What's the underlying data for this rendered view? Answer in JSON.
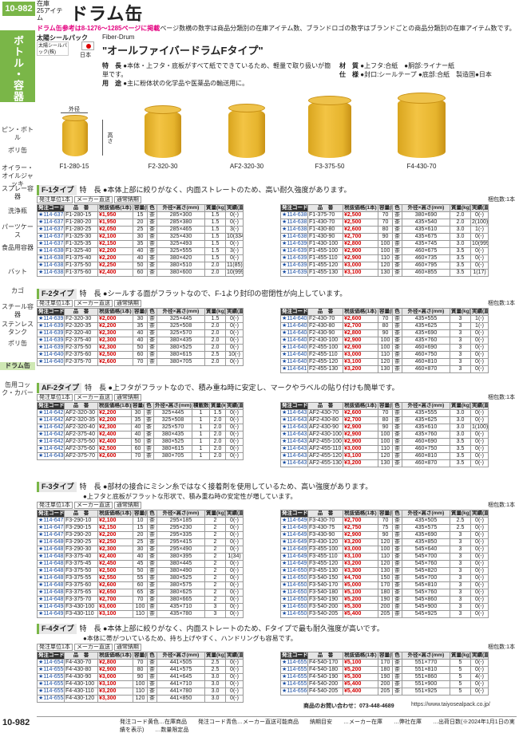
{
  "page": {
    "number": "10-982",
    "number_bottom": "10-982",
    "category_line1": "在庫",
    "category_line2": "25アイテム",
    "title": "ドラム缶"
  },
  "ref_text_pre": "ドラム缶参考は8-1276〜1285ページに掲載",
  "ref_text_post": "ページ数横の数字は商品分類別の在庫アイテム数、ブランドロゴの数字はブランドごとの商品分類別の在庫アイテム数です。",
  "sidebar": {
    "main": "ボトル・容器",
    "items": [
      "ピン・ボトル",
      "ポリ缶",
      "オイラー・オイルジャッキ",
      "スプレー容器",
      "洗浄瓶",
      "パーツケース",
      "食品用容器",
      "バット",
      "カゴ",
      "スチール容器",
      "ステンレスタンク",
      "ポリ缶",
      "ドラム缶",
      "缶用コック・カバー"
    ]
  },
  "brand": {
    "name": "太陽シールパック",
    "logo_text": "太陽シールパック(株)",
    "country": "日本",
    "sub_en": "Fiber-Drum",
    "sub_jp": "\"オールファイバードラムFタイプ\""
  },
  "specs": {
    "l1_label": "特　長",
    "l1": "●本体・上フタ・底板がすべて紙でできているため、軽量で取り扱いが簡単です。",
    "l2_label": "用　途",
    "l2": "●主に粉体状の化学品や医薬品の輸送用に。",
    "m_label": "材　質",
    "m1": "●上フタ:合紙　●胴部:ライナー紙",
    "m2": "●底部:合紙　製造国●日本",
    "s_label": "仕　様",
    "s1": "●封口:シールテープ"
  },
  "products": [
    {
      "code": "F1-280-15"
    },
    {
      "code": "F2-320-30"
    },
    {
      "code": "AF2-320-30"
    },
    {
      "code": "F3-375-50"
    },
    {
      "code": "F4-430-70"
    }
  ],
  "dim_labels": {
    "outer": "外径",
    "height": "高さ"
  },
  "headers": {
    "code": "発注コード",
    "name": "品　番",
    "price": "税抜価格(1本)",
    "kind": "メーカー直送",
    "cap": "容量(L)",
    "color": "色",
    "dims": "外径×高さ(mm)",
    "weight": "質量(kg)",
    "stock": "実績(直送注文)",
    "layers": "積載数(本)",
    "unit_label": "発注単位1本",
    "maker": "メーカー直送",
    "stock_hdr": "通常納期",
    "pack": "梱包数:1本",
    "seller": "太陽シールパック(株)"
  },
  "sections": [
    {
      "id": "F-1",
      "name": "F-1タイプ",
      "note": "特　長 ●本体上部に絞りがなく、内面ストレートのため、高い耐久強度があります。",
      "left": [
        [
          "114-6374",
          "F1-280-15",
          "¥1,950",
          "15",
          "茶",
          "285×300",
          "1.5",
          "0(-)"
        ],
        [
          "114-6375",
          "F1-280-20",
          "¥1,950",
          "20",
          "茶",
          "285×380",
          "1.5",
          "0(-)"
        ],
        [
          "114-6376",
          "F1-280-25",
          "¥2,050",
          "25",
          "茶",
          "285×465",
          "1.5",
          "3(-)"
        ],
        [
          "114-6377",
          "F1-325-30",
          "¥2,100",
          "30",
          "茶",
          "325×430",
          "1.5",
          "10(334)"
        ],
        [
          "114-6378",
          "F1-325-35",
          "¥2,150",
          "35",
          "茶",
          "325×493",
          "1.5",
          "0(-)"
        ],
        [
          "114-6380",
          "F1-325-40",
          "¥2,200",
          "40",
          "茶",
          "325×555",
          "1.5",
          "3(-)"
        ],
        [
          "114-6381",
          "F1-375-40",
          "¥2,200",
          "40",
          "茶",
          "380×420",
          "1.5",
          "0(-)"
        ],
        [
          "114-6382",
          "F1-375-50",
          "¥2,250",
          "50",
          "茶",
          "380×510",
          "2.0",
          "11(85)"
        ],
        [
          "114-6383",
          "F1-375-60",
          "¥2,400",
          "60",
          "茶",
          "380×600",
          "2.0",
          "10(999)"
        ]
      ],
      "right": [
        [
          "114-6386",
          "F1-375-70",
          "¥2,500",
          "70",
          "茶",
          "380×690",
          "2.0",
          "0(-)"
        ],
        [
          "114-6387",
          "F1-430-70",
          "¥2,500",
          "70",
          "茶",
          "435×540",
          "2.0",
          "2(100)"
        ],
        [
          "114-6388",
          "F1-430-80",
          "¥2,600",
          "80",
          "茶",
          "435×610",
          "3.0",
          "1(-)"
        ],
        [
          "114-6389",
          "F1-430-90",
          "¥2,700",
          "90",
          "茶",
          "435×675",
          "3.0",
          "0(-)"
        ],
        [
          "114-6390",
          "F1-430-100",
          "¥2,800",
          "100",
          "茶",
          "435×745",
          "3.0",
          "10(999)"
        ],
        [
          "114-6391",
          "F1-455-100",
          "¥2,900",
          "100",
          "茶",
          "460×675",
          "3.5",
          "0(-)"
        ],
        [
          "114-6392",
          "F1-455-110",
          "¥2,900",
          "110",
          "茶",
          "460×735",
          "3.5",
          "0(-)"
        ],
        [
          "114-6393",
          "F1-455-120",
          "¥3,000",
          "120",
          "茶",
          "460×795",
          "3.5",
          "0(-)"
        ],
        [
          "114-6394",
          "F1-455-130",
          "¥3,100",
          "130",
          "茶",
          "460×855",
          "3.5",
          "1(17)"
        ]
      ]
    },
    {
      "id": "F-2",
      "name": "F-2タイプ",
      "note": "特　長 ●シールする面がフラットなので、F-1より封印の密閉性が向上しています。",
      "left": [
        [
          "114-6395",
          "F2-320-30",
          "¥2,000",
          "30",
          "茶",
          "325×445",
          "1.5",
          "0(-)"
        ],
        [
          "114-6396",
          "F2-320-35",
          "¥2,200",
          "35",
          "茶",
          "325×508",
          "2.0",
          "0(-)"
        ],
        [
          "114-6397",
          "F2-320-40",
          "¥2,300",
          "40",
          "茶",
          "325×570",
          "2.0",
          "0(-)"
        ],
        [
          "114-6398",
          "F2-375-40",
          "¥2,300",
          "40",
          "茶",
          "380×435",
          "2.0",
          "0(-)"
        ],
        [
          "114-6399",
          "F2-375-50",
          "¥2,300",
          "50",
          "茶",
          "380×525",
          "2.0",
          "0(-)"
        ],
        [
          "114-6400",
          "F2-375-60",
          "¥2,500",
          "60",
          "茶",
          "380×615",
          "2.5",
          "10(-)"
        ],
        [
          "114-6401",
          "F2-375-70",
          "¥2,600",
          "70",
          "茶",
          "380×705",
          "2.0",
          "0(-)"
        ]
      ],
      "right": [
        [
          "114-6402",
          "F2-430-70",
          "¥2,600",
          "70",
          "茶",
          "435×555",
          "3",
          "1(-)"
        ],
        [
          "114-6403",
          "F2-430-80",
          "¥2,700",
          "80",
          "茶",
          "435×625",
          "3",
          "1(-)"
        ],
        [
          "114-6404",
          "F2-430-90",
          "¥2,800",
          "90",
          "茶",
          "435×690",
          "3",
          "0(-)"
        ],
        [
          "114-6405",
          "F2-430-100",
          "¥2,900",
          "100",
          "茶",
          "435×760",
          "3",
          "0(-)"
        ],
        [
          "114-6406",
          "F2-455-100",
          "¥2,900",
          "100",
          "茶",
          "460×690",
          "3",
          "0(-)"
        ],
        [
          "114-6407",
          "F2-455-110",
          "¥3,000",
          "110",
          "茶",
          "460×750",
          "3",
          "0(-)"
        ],
        [
          "114-6409",
          "F2-455-120",
          "¥3,100",
          "120",
          "茶",
          "460×810",
          "3",
          "0(-)"
        ],
        [
          "114-6410",
          "F2-455-130",
          "¥3,200",
          "130",
          "茶",
          "460×870",
          "3",
          "0(-)"
        ]
      ]
    },
    {
      "id": "AF-2",
      "name": "AF-2タイプ",
      "note": "特　長 ●上フタがフラットなので、積み重ね時に安定し、マークやラベルの貼り付けも簡単です。",
      "left": [
        [
          "114-6423",
          "AF2-320-30",
          "¥2,200",
          "30",
          "茶",
          "325×445",
          "1",
          "1.5"
        ],
        [
          "114-6425",
          "AF2-320-35",
          "¥2,200",
          "35",
          "茶",
          "325×508",
          "1",
          "2.0"
        ],
        [
          "114-6426",
          "AF2-320-40",
          "¥2,300",
          "40",
          "茶",
          "325×570",
          "1",
          "2.0"
        ],
        [
          "114-6427",
          "AF2-375-40",
          "¥2,400",
          "40",
          "茶",
          "380×435",
          "1",
          "2.0"
        ],
        [
          "114-6428",
          "AF2-375-50",
          "¥2,400",
          "50",
          "茶",
          "380×525",
          "1",
          "2.0"
        ],
        [
          "114-6429",
          "AF2-375-60",
          "¥2,500",
          "60",
          "茶",
          "380×615",
          "1",
          "2.0"
        ],
        [
          "114-6430",
          "AF2-375-70",
          "¥2,600",
          "70",
          "茶",
          "380×705",
          "1",
          "2.0"
        ]
      ],
      "right": [
        [
          "114-6431",
          "AF2-430-70",
          "¥2,600",
          "70",
          "茶",
          "435×555",
          "3.0",
          "0(-)"
        ],
        [
          "114-6433",
          "AF2-430-80",
          "¥2,700",
          "80",
          "茶",
          "435×625",
          "3.0",
          "0(-)"
        ],
        [
          "114-6434",
          "AF2-430-90",
          "¥2,900",
          "90",
          "茶",
          "435×610",
          "3.0",
          "1(100)"
        ],
        [
          "114-6435",
          "AF2-430-100",
          "¥2,900",
          "100",
          "茶",
          "435×760",
          "3.0",
          "0(-)"
        ],
        [
          "114-6436",
          "AF2-455-100",
          "¥2,900",
          "100",
          "茶",
          "460×690",
          "3.5",
          "0(-)"
        ],
        [
          "114-6437",
          "AF2-455-110",
          "¥3,000",
          "110",
          "茶",
          "460×750",
          "3.5",
          "0(-)"
        ],
        [
          "114-6438",
          "AF2-455-120",
          "¥3,100",
          "120",
          "茶",
          "460×810",
          "3.5",
          "0(-)"
        ],
        [
          "114-6439",
          "AF2-455-130",
          "¥3,200",
          "130",
          "茶",
          "460×870",
          "3.5",
          "0(-)"
        ]
      ]
    },
    {
      "id": "F-3",
      "name": "F-3タイプ",
      "note": "特　長 ●部材の接合にミシン糸ではなく接着剤を使用しているため、高い強度があります。",
      "note2": "●上フタと底板がフラットな形状で、積み重ね時の安定性が増しています。",
      "left": [
        [
          "114-6477",
          "F3-290-10",
          "¥2,100",
          "10",
          "茶",
          "295×185",
          "2",
          "0(-)"
        ],
        [
          "114-6478",
          "F3-290-15",
          "¥2,150",
          "15",
          "茶",
          "295×230",
          "2",
          "0(-)"
        ],
        [
          "114-6479",
          "F3-290-20",
          "¥2,200",
          "20",
          "茶",
          "295×335",
          "2",
          "0(-)"
        ],
        [
          "114-6480",
          "F3-290-25",
          "¥2,250",
          "25",
          "茶",
          "295×415",
          "2",
          "0(-)"
        ],
        [
          "114-6481",
          "F3-290-30",
          "¥2,300",
          "30",
          "茶",
          "295×490",
          "2",
          "0(-)"
        ],
        [
          "114-6482",
          "F3-375-40",
          "¥2,400",
          "40",
          "茶",
          "380×395",
          "2",
          "1(34)"
        ],
        [
          "114-6483",
          "F3-375-45",
          "¥2,450",
          "45",
          "茶",
          "380×445",
          "2",
          "0(-)"
        ],
        [
          "114-6485",
          "F3-375-50",
          "¥2,500",
          "50",
          "茶",
          "380×490",
          "2",
          "0(-)"
        ],
        [
          "114-6486",
          "F3-375-55",
          "¥2,550",
          "55",
          "茶",
          "380×525",
          "2",
          "0(-)"
        ],
        [
          "114-6487",
          "F3-375-60",
          "¥2,600",
          "60",
          "茶",
          "380×575",
          "2",
          "0(-)"
        ],
        [
          "114-6488",
          "F3-375-65",
          "¥2,650",
          "65",
          "茶",
          "380×625",
          "2",
          "0(-)"
        ],
        [
          "114-6489",
          "F3-375-70",
          "¥2,700",
          "70",
          "茶",
          "380×665",
          "2",
          "0(-)"
        ],
        [
          "114-6494",
          "F3-430-100",
          "¥3,000",
          "100",
          "茶",
          "435×710",
          "3",
          "0(-)"
        ],
        [
          "114-6495",
          "F3-430-110",
          "¥3,100",
          "110",
          "茶",
          "435×780",
          "3",
          "0(-)"
        ]
      ],
      "right": [
        [
          "114-6490",
          "F3-430-70",
          "¥2,700",
          "70",
          "茶",
          "435×505",
          "2.5",
          "0(-)"
        ],
        [
          "114-6492",
          "F3-430-75",
          "¥2,750",
          "75",
          "茶",
          "435×575",
          "2.5",
          "0(-)"
        ],
        [
          "114-6493",
          "F3-430-90",
          "¥2,900",
          "90",
          "茶",
          "435×690",
          "3",
          "0(-)"
        ],
        [
          "114-6496",
          "F3-430-120",
          "¥3,200",
          "120",
          "茶",
          "435×850",
          "3",
          "0(-)"
        ],
        [
          "114-6497",
          "F3-455-100",
          "¥3,000",
          "100",
          "茶",
          "545×640",
          "3",
          "0(-)"
        ],
        [
          "114-6498",
          "F3-455-110",
          "¥3,100",
          "110",
          "茶",
          "545×700",
          "3",
          "0(-)"
        ],
        [
          "114-6499",
          "F3-455-120",
          "¥3,200",
          "120",
          "茶",
          "545×760",
          "3",
          "0(-)"
        ],
        [
          "114-6500",
          "F3-455-130",
          "¥3,300",
          "130",
          "茶",
          "545×820",
          "3",
          "0(-)"
        ],
        [
          "114-6501",
          "F3-540-150",
          "¥4,700",
          "150",
          "茶",
          "545×700",
          "3",
          "0(-)"
        ],
        [
          "114-6502",
          "F3-540-170",
          "¥5,000",
          "170",
          "茶",
          "545×810",
          "3",
          "0(-)"
        ],
        [
          "114-6503",
          "F3-540-180",
          "¥5,100",
          "180",
          "茶",
          "545×760",
          "3",
          "0(-)"
        ],
        [
          "114-6504",
          "F3-540-190",
          "¥5,200",
          "190",
          "茶",
          "545×860",
          "3",
          "0(-)"
        ],
        [
          "114-6505",
          "F3-540-200",
          "¥5,300",
          "200",
          "茶",
          "545×900",
          "3",
          "0(-)"
        ],
        [
          "114-6506",
          "F3-540-205",
          "¥5,400",
          "205",
          "茶",
          "545×925",
          "3",
          "0(-)"
        ]
      ]
    },
    {
      "id": "F-4",
      "name": "F-4タイプ",
      "note": "特　長 ●本体上部に絞りがなく、内面ストレートのため、Fタイプで最も耐久強度が高いです。",
      "note2": "●本体に帯がついているため、持ち上げやすく、ハンドリングも容易です。",
      "left": [
        [
          "114-6549",
          "F4-430-70",
          "¥2,800",
          "70",
          "茶",
          "441×505",
          "2.5",
          "0(-)"
        ],
        [
          "114-6550",
          "F4-430-80",
          "¥2,900",
          "80",
          "茶",
          "441×575",
          "2.5",
          "0(-)"
        ],
        [
          "114-6551",
          "F4-430-90",
          "¥3,000",
          "90",
          "茶",
          "441×645",
          "3.0",
          "0(-)"
        ],
        [
          "114-6552",
          "F4-430-100",
          "¥3,100",
          "100",
          "茶",
          "441×710",
          "3.0",
          "0(-)"
        ],
        [
          "114-6553",
          "F4-430-110",
          "¥3,200",
          "110",
          "茶",
          "441×780",
          "3.0",
          "0(-)"
        ],
        [
          "114-6554",
          "F4-430-120",
          "¥3,300",
          "120",
          "茶",
          "441×850",
          "3.0",
          "0(-)"
        ]
      ],
      "right": [
        [
          "114-6555",
          "F4-540-170",
          "¥5,100",
          "170",
          "茶",
          "551×770",
          "5",
          "0(-)"
        ],
        [
          "114-6556",
          "F4-540-180",
          "¥5,200",
          "180",
          "茶",
          "551×810",
          "5",
          "0(-)"
        ],
        [
          "114-6558",
          "F4-540-190",
          "¥5,300",
          "190",
          "茶",
          "551×860",
          "5",
          "4(-)"
        ],
        [
          "114-6559",
          "F4-540-200",
          "¥5,400",
          "200",
          "茶",
          "551×900",
          "5",
          "0(-)"
        ],
        [
          "114-6560",
          "F4-540-205",
          "¥5,400",
          "205",
          "茶",
          "551×925",
          "5",
          "0(-)"
        ]
      ]
    }
  ],
  "footer": {
    "contact": "商品のお問い合わせ：073-448-4689",
    "url": "https://www.taiyosealpack.co.jp/",
    "legend": "発注コード黄色…在庫商品　　発注コード青色…メーカー直送可能商品　　納期目安　　…メーカー在庫　　…弊社在庫　　…出荷日数(※2024年1月1日の実績を表示)　　…数量限定品"
  }
}
